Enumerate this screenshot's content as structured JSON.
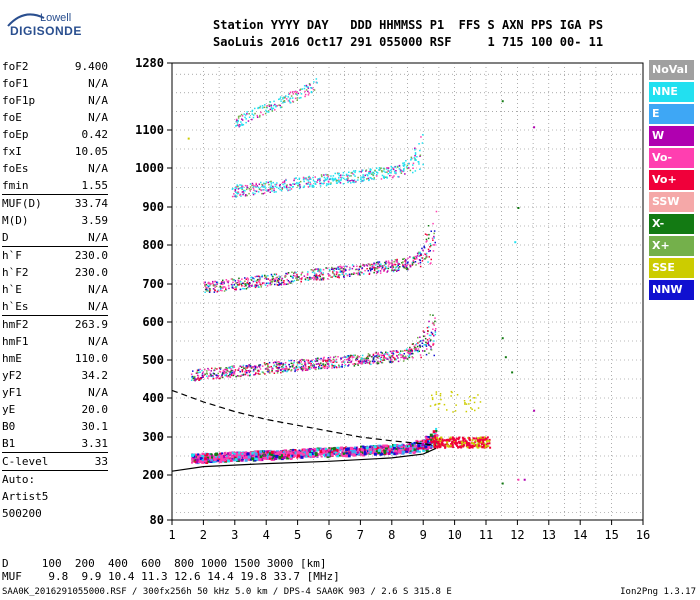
{
  "logo": {
    "top": "Lowell",
    "bottom": "DIGISONDE"
  },
  "header": {
    "line1": "Station YYYY DAY   DDD HHMMSS P1  FFS S AXN PPS IGA PS",
    "line2": "SaoLuis 2016 Oct17 291 055000 RSF     1 715 100 00- 11"
  },
  "params": [
    {
      "group": [
        {
          "name": "foF2",
          "value": "9.400"
        },
        {
          "name": "foF1",
          "value": "N/A"
        },
        {
          "name": "foF1p",
          "value": "N/A"
        },
        {
          "name": "foE",
          "value": "N/A"
        },
        {
          "name": "foEp",
          "value": "0.42"
        },
        {
          "name": "fxI",
          "value": "10.05"
        },
        {
          "name": "foEs",
          "value": "N/A"
        },
        {
          "name": "fmin",
          "value": "1.55"
        }
      ]
    },
    {
      "group": [
        {
          "name": "MUF(D)",
          "value": "33.74"
        },
        {
          "name": "M(D)",
          "value": "3.59"
        },
        {
          "name": "D",
          "value": "N/A"
        }
      ]
    },
    {
      "group": [
        {
          "name": "h`F",
          "value": "230.0"
        },
        {
          "name": "h`F2",
          "value": "230.0"
        },
        {
          "name": "h`E",
          "value": "N/A"
        },
        {
          "name": "h`Es",
          "value": "N/A"
        }
      ]
    },
    {
      "group": [
        {
          "name": "hmF2",
          "value": "263.9"
        },
        {
          "name": "hmF1",
          "value": "N/A"
        },
        {
          "name": "hmE",
          "value": "110.0"
        },
        {
          "name": "yF2",
          "value": "34.2"
        },
        {
          "name": "yF1",
          "value": "N/A"
        },
        {
          "name": "yE",
          "value": "20.0"
        },
        {
          "name": "B0",
          "value": "30.1"
        },
        {
          "name": "B1",
          "value": "3.31"
        }
      ]
    },
    {
      "group": [
        {
          "name": "C-level",
          "value": "33"
        }
      ]
    }
  ],
  "autoscaling": {
    "line1": "Auto:",
    "line2": "Artist5",
    "line3": "500200"
  },
  "legend": [
    {
      "label": "NoVal",
      "color": "#a0a0a0"
    },
    {
      "label": "NNE",
      "color": "#22e0f0"
    },
    {
      "label": "E",
      "color": "#3ea7f5"
    },
    {
      "label": "W",
      "color": "#b000b0"
    },
    {
      "label": "Vo-",
      "color": "#ff3fb0"
    },
    {
      "label": "Vo+",
      "color": "#f0003a"
    },
    {
      "label": "SSW",
      "color": "#f5a8a8"
    },
    {
      "label": "X-",
      "color": "#137a13"
    },
    {
      "label": "X+",
      "color": "#74b04b"
    },
    {
      "label": "SSE",
      "color": "#cccc00"
    },
    {
      "label": "NNW",
      "color": "#1010d0"
    }
  ],
  "footer": {
    "d_line": "D     100  200  400  600  800 1000 1500 3000 [km]",
    "muf_line": "MUF    9.8  9.9 10.4 11.3 12.6 14.4 19.8 33.7 [MHz]",
    "file_line": "SAA0K_2016291055000.RSF / 300fx256h 50 kHz 5.0 km / DPS-4 SAA0K 903 / 2.6 S 315.8 E",
    "version": "Ion2Png 1.3.17"
  },
  "chart_data": {
    "type": "scatter",
    "xlim": [
      1,
      16
    ],
    "ylim_km": [
      80,
      1280
    ],
    "y_scale": "segmented",
    "x_ticks": [
      1,
      2,
      3,
      4,
      5,
      6,
      7,
      8,
      9,
      10,
      11,
      12,
      13,
      14,
      15,
      16
    ],
    "y_ticks": [
      80,
      200,
      300,
      400,
      500,
      600,
      700,
      800,
      900,
      1000,
      1100,
      1280
    ],
    "grid": true,
    "legend_position": "right",
    "traces": [
      {
        "name": "F1",
        "f": [
          1.6,
          9.4
        ],
        "h": [
          245,
          275
        ],
        "f_end_h": 320
      },
      {
        "name": "F2",
        "f": [
          1.6,
          9.4
        ],
        "h": [
          460,
          520
        ],
        "f_end_h": 650
      },
      {
        "name": "F3",
        "f": [
          2.0,
          9.4
        ],
        "h": [
          690,
          760
        ],
        "f_end_h": 900
      },
      {
        "name": "F4",
        "f": [
          2.9,
          9.0
        ],
        "h": [
          940,
          1000
        ],
        "f_end_h": 1130
      },
      {
        "name": "F5",
        "f": [
          3.0,
          5.6
        ],
        "h": [
          1120,
          1220
        ],
        "f_end_h": 1230
      }
    ],
    "profile_solid": {
      "f": [
        1.0,
        2.0,
        4.0,
        6.0,
        8.0,
        9.0,
        9.4
      ],
      "h": [
        210,
        222,
        230,
        236,
        245,
        255,
        270
      ]
    },
    "profile_dashed": {
      "f": [
        1.0,
        2.0,
        3.0,
        4.0,
        5.0,
        6.0,
        7.0,
        8.0,
        9.0,
        9.4
      ],
      "h": [
        420,
        390,
        365,
        345,
        330,
        315,
        300,
        290,
        282,
        278
      ]
    }
  }
}
